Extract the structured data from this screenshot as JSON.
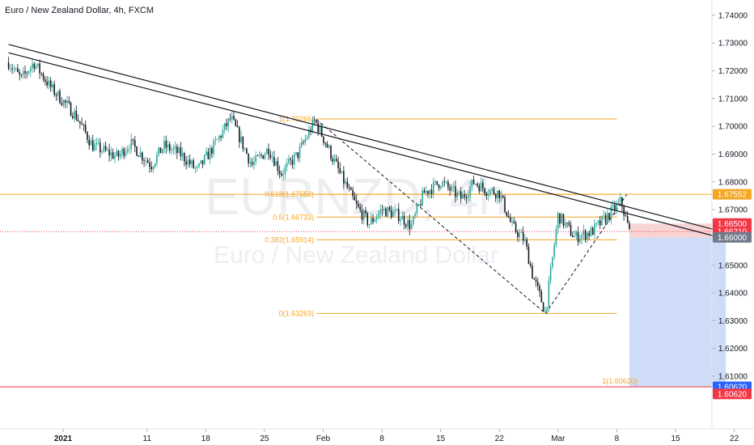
{
  "header": {
    "title": "Euro / New Zealand Dollar, 4h, FXCM"
  },
  "watermark": {
    "symbol": "EURNZD, 4h",
    "name": "Euro / New Zealand Dollar"
  },
  "colors": {
    "up": "#26a69a",
    "down": "#131722",
    "fib": "#f5a623",
    "trend": "#131722",
    "stop_zone": "#f8c9c9",
    "target_zone": "#c7d6f7",
    "tag_orange": "#f5a623",
    "tag_red": "#f23645",
    "tag_gray": "#707a8a",
    "tag_blue": "#2962ff"
  },
  "chart_data": {
    "type": "candlestick",
    "title": "Euro / New Zealand Dollar, 4h, FXCM",
    "y_axis": {
      "range": [
        1.603,
        1.7455
      ],
      "ticks": [
        "1.74000",
        "1.73000",
        "1.72000",
        "1.71000",
        "1.70000",
        "1.69000",
        "1.68000",
        "1.67000",
        "1.66000",
        "1.65000",
        "1.64000",
        "1.63000",
        "1.62000",
        "1.61000"
      ]
    },
    "x_axis": {
      "labels": [
        {
          "label": "2021",
          "day": 0
        },
        {
          "label": "11",
          "day": 10
        },
        {
          "label": "18",
          "day": 17
        },
        {
          "label": "25",
          "day": 24
        },
        {
          "label": "Feb",
          "day": 31
        },
        {
          "label": "8",
          "day": 38
        },
        {
          "label": "15",
          "day": 45
        },
        {
          "label": "22",
          "day": 52
        },
        {
          "label": "Mar",
          "day": 59
        },
        {
          "label": "8",
          "day": 66
        },
        {
          "label": "15",
          "day": 73
        },
        {
          "label": "22",
          "day": 80
        }
      ]
    },
    "price_path": [
      [
        -6.5,
        1.723
      ],
      [
        -5,
        1.717
      ],
      [
        -3.5,
        1.723
      ],
      [
        -1.5,
        1.714
      ],
      [
        1.5,
        1.704
      ],
      [
        3.5,
        1.693
      ],
      [
        6.5,
        1.689
      ],
      [
        8,
        1.694
      ],
      [
        10.5,
        1.686
      ],
      [
        12,
        1.693
      ],
      [
        14,
        1.69
      ],
      [
        16,
        1.684
      ],
      [
        18,
        1.693
      ],
      [
        20,
        1.703
      ],
      [
        22.5,
        1.686
      ],
      [
        24.5,
        1.692
      ],
      [
        26,
        1.683
      ],
      [
        28,
        1.69
      ],
      [
        30,
        1.702
      ],
      [
        31,
        1.696
      ],
      [
        33,
        1.683
      ],
      [
        35,
        1.671
      ],
      [
        36.5,
        1.665
      ],
      [
        38,
        1.67
      ],
      [
        40,
        1.668
      ],
      [
        41.5,
        1.664
      ],
      [
        43,
        1.676
      ],
      [
        45,
        1.68
      ],
      [
        47.5,
        1.674
      ],
      [
        49,
        1.68
      ],
      [
        50.5,
        1.677
      ],
      [
        52,
        1.676
      ],
      [
        53.5,
        1.664
      ],
      [
        55,
        1.659
      ],
      [
        56,
        1.646
      ],
      [
        57.5,
        1.633
      ],
      [
        59,
        1.668
      ],
      [
        61,
        1.66
      ],
      [
        63,
        1.662
      ],
      [
        65,
        1.668
      ],
      [
        66.5,
        1.673
      ],
      [
        67.5,
        1.662
      ]
    ],
    "candles": {
      "count": 340,
      "start_day": -6.5,
      "end_day": 67.5
    },
    "trendlines": [
      {
        "from": [
          -6.5,
          1.7295
        ],
        "to": [
          78,
          1.6625
        ]
      },
      {
        "from": [
          -6.5,
          1.7265
        ],
        "to": [
          78,
          1.6602
        ]
      }
    ],
    "fib_impulse": {
      "from": [
        30.2,
        1.7025
      ],
      "to": [
        57.5,
        1.63263
      ]
    },
    "fib_retrace": {
      "from": [
        57.5,
        1.63263
      ],
      "to": [
        67.2,
        1.6755
      ]
    },
    "fib_levels": [
      {
        "label": "1(1.70266)",
        "price": 1.70266,
        "from_day": 30.2,
        "to_day": 66
      },
      {
        "label": "0.618(1.67552)",
        "price": 1.67552,
        "from_day": 30.2,
        "to_day": 66
      },
      {
        "label": "0.5(1.66733)",
        "price": 1.66733,
        "from_day": 30.2,
        "to_day": 66
      },
      {
        "label": "0.382(1.65914)",
        "price": 1.65914,
        "from_day": 30.2,
        "to_day": 66
      },
      {
        "label": "0(1.63263)",
        "price": 1.63263,
        "from_day": 30.2,
        "to_day": 66
      }
    ],
    "horizontal_lines": [
      {
        "price": 1.67552,
        "color": "orange",
        "style": "solid"
      },
      {
        "price": 1.6621,
        "color": "red",
        "style": "dotted"
      },
      {
        "price": 1.6062,
        "color": "red",
        "style": "solid",
        "label": "1(1.60620)"
      }
    ],
    "position": {
      "type": "short",
      "entry": 1.66,
      "stop": 1.665,
      "target": 1.6062,
      "from_day": 67.5,
      "to_day": 79
    },
    "price_tags": [
      {
        "text": "1.67552",
        "price": 1.67552,
        "color": "orange"
      },
      {
        "text": "1.66500",
        "price": 1.665,
        "color": "red"
      },
      {
        "text": "1.66210",
        "price": 1.6621,
        "color": "red"
      },
      {
        "text": "1.66000",
        "price": 1.66,
        "color": "gray"
      },
      {
        "text": "1.60620",
        "price": 1.6062,
        "color": "blue"
      },
      {
        "text": "1.60620",
        "price": 1.60365,
        "color": "red"
      }
    ]
  }
}
